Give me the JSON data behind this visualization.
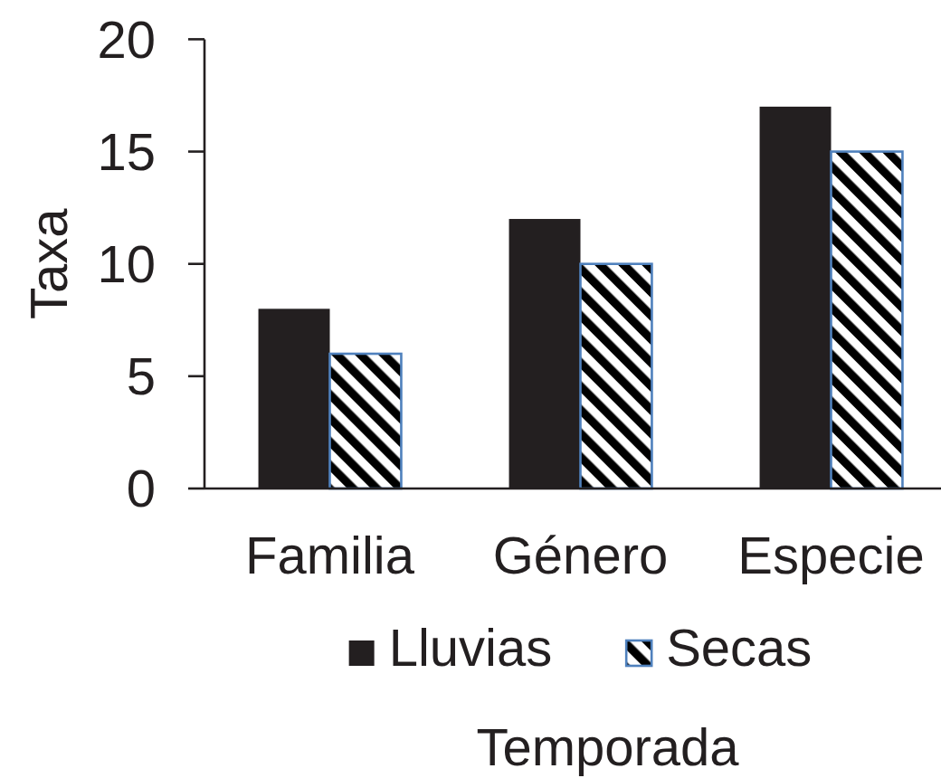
{
  "chart_data": {
    "type": "bar",
    "xlabel": "Temporada",
    "ylabel": "Taxa",
    "categories": [
      "Familia",
      "Género",
      "Especie"
    ],
    "series": [
      {
        "name": "Lluvias",
        "color": "#231f20",
        "values": [
          8,
          12,
          17
        ]
      },
      {
        "name": "Secas",
        "color": "#4f81bd",
        "values": [
          6,
          10,
          15
        ]
      }
    ],
    "ylim": [
      0,
      20
    ],
    "yticks": [
      0,
      5,
      10,
      15,
      20
    ],
    "grid": false,
    "legend": "bottom"
  }
}
